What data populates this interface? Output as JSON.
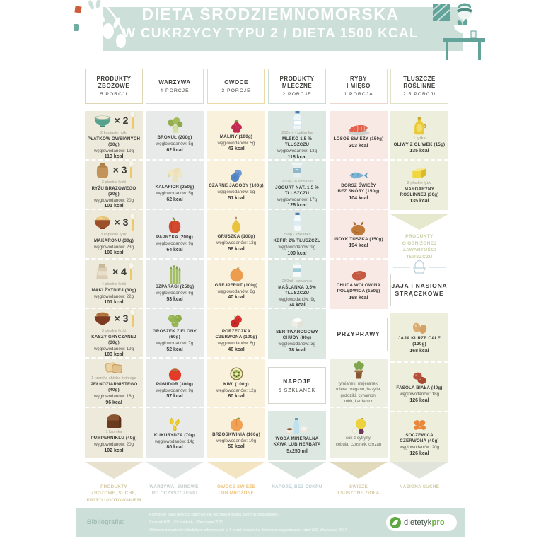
{
  "header": {
    "line1": "DIETA ŚRÓDZIEMNOMORSKA",
    "line2": "W CUKRZYCY TYPU 2 / DIETA 1500 KCAL",
    "band_color": "#cddfd9"
  },
  "columns": [
    {
      "id": "zbozowe",
      "title": "PRODUKTY\nZBOŻOWE",
      "portions": "5 PORCJI",
      "colors": {
        "card": "#edeadb",
        "border": "#ded5b5",
        "arrow": "#e7e1cd",
        "fchev": "#e7e1cd",
        "foot": "#d3c9a2"
      },
      "footnote": "PRODUKTY\nZBOŻOWE, SUCHE,\nPRZED UGOTOWANIEM",
      "items": [
        {
          "icon": "bowl_oats",
          "mult": "× 2",
          "label": "2 kopiaste łyżki",
          "name": "PŁATKÓW OWSIANYCH (30g)",
          "carbs": "węglowodanów: 19g",
          "kcal": "113 kcal"
        },
        {
          "icon": "sack",
          "mult": "× 3",
          "label": "3 płaskie łyżki",
          "name": "RYŻU BRĄZOWEGO (30g)",
          "carbs": "węglowodanów: 20g",
          "kcal": "101 kcal"
        },
        {
          "icon": "bowl_pasta",
          "mult": "× 3",
          "label": "3 kopiaste łyżki",
          "name": "MAKARONU (30g)",
          "carbs": "węglowodanów: 23g",
          "kcal": "100 kcal"
        },
        {
          "icon": "flour_bag",
          "mult": "× 4",
          "label": "4 płaskie łyżki",
          "name": "MĄKI ŻYTNIEJ (30g)",
          "carbs": "węglowodanów: 22g",
          "kcal": "101 kcal"
        },
        {
          "icon": "bowl_groats",
          "mult": "× 3",
          "label": "3 płaskie łyżki",
          "name": "KASZY GRYCZANEJ (30g)",
          "carbs": "węglowodanów: 19g",
          "kcal": "103 kcal"
        },
        {
          "icon": "bread_slices",
          "label": "1 kromka chleba żytniego",
          "name": "PEŁNOZIARNISTEGO (40g)",
          "carbs": "węglowodanów: 18g",
          "kcal": "96 kcal"
        },
        {
          "icon": "bread_loaf",
          "label": "1 kromka",
          "name": "PUMPERNIKLU (40g)",
          "carbs": "węglowodanów: 20g",
          "kcal": "102 kcal"
        }
      ]
    },
    {
      "id": "warzywa",
      "title": "WARZYWA",
      "portions": "4 PORCJE",
      "colors": {
        "card": "#e8eae9",
        "border": "#d6dbd9",
        "arrow": "#e1e5e4",
        "fchev": "#e1e5e4",
        "foot": "#c2cac7"
      },
      "footnote": "WARZYWA, SUROWE,\nPO OCZYSZCZENIU",
      "items": [
        {
          "icon": "broccoli",
          "name": "BROKUŁ (200g)",
          "carbs": "węglowodanów: 5g",
          "kcal": "62 kcal"
        },
        {
          "icon": "cauliflower",
          "name": "KALAFIOR (250g)",
          "carbs": "węglowodanów: 5g",
          "kcal": "62 kcal"
        },
        {
          "icon": "pepper",
          "name": "PAPRYKA (200g)",
          "carbs": "węglowodanów: 9g",
          "kcal": "64 kcal"
        },
        {
          "icon": "asparagus",
          "name": "SZPARAGI (250g)",
          "carbs": "węglowodanów: 6g",
          "kcal": "53 kcal"
        },
        {
          "icon": "peas",
          "name": "GROSZEK ZIELONY (60g)",
          "carbs": "węglowodanów: 7g",
          "kcal": "52 kcal"
        },
        {
          "icon": "tomato",
          "name": "POMIDOR (300g)",
          "carbs": "węglowodanów: 9g",
          "kcal": "57 kcal"
        },
        {
          "icon": "corn",
          "name": "KUKURYDZA (70g)",
          "carbs": "węglowodanów: 14g",
          "kcal": "80 kcal"
        }
      ]
    },
    {
      "id": "owoce",
      "title": "OWOCE",
      "portions": "3 PORCJE",
      "colors": {
        "card": "#faf1dd",
        "border": "#eedaa4",
        "arrow": "#f4e5c2",
        "fchev": "#f4e5c2",
        "foot": "#eec27a"
      },
      "footnote": "OWOCE ŚWIEŻE\nLUB MROŻONE",
      "items": [
        {
          "icon": "raspberry",
          "name": "MALINY (100g)",
          "carbs": "węglowodanów: 5g",
          "kcal": "43 kcal"
        },
        {
          "icon": "blueberries",
          "name": "CZARNE JAGODY (100g)",
          "carbs": "węglowodanów: 9g",
          "kcal": "51 kcal"
        },
        {
          "icon": "pear",
          "name": "GRUSZKA (100g)",
          "carbs": "węglowodanów: 12g",
          "kcal": "58 kcal"
        },
        {
          "icon": "grapefruit",
          "name": "GREJPFRUT (100g)",
          "carbs": "węglowodanów: 8g",
          "kcal": "40 kcal"
        },
        {
          "icon": "currants",
          "name": "PORZECZKA CZERWONA (100g)",
          "carbs": "węglowodanów: 6g",
          "kcal": "46 kcal"
        },
        {
          "icon": "kiwi",
          "name": "KIWI (100g)",
          "carbs": "węglowodanów: 12g",
          "kcal": "60 kcal"
        },
        {
          "icon": "peach",
          "name": "BRZOSKWINIA (100g)",
          "carbs": "węglowodanów: 10g",
          "kcal": "50 kcal"
        }
      ]
    },
    {
      "id": "mleczne",
      "title": "PRODUKTY\nMLECZNE",
      "portions": "2 PORCJE",
      "colors": {
        "card": "#dde8e3",
        "border": "#cfdcd6",
        "arrow": "#d8e3de",
        "fchev": "#d8e3de",
        "foot": "#bccdd2"
      },
      "footnote": "NAPOJE, BEZ CUKRU",
      "items": [
        {
          "icon": "milk_bottle",
          "label": "250 ml - szklanka",
          "name": "MLEKO 1,5 % TŁUSZCZU",
          "carbs": "węglowodanów: 13g",
          "kcal": "118 kcal"
        },
        {
          "icon": "yogurt_cup",
          "label": "200g - ¾ szklanki",
          "name": "JOGURT NAT. 1,5 % TŁUSZCZU",
          "carbs": "węglowodanów: 17g",
          "kcal": "126 kcal"
        },
        {
          "icon": "kefir_bottle",
          "label": "250g - szklanka",
          "name": "KEFIR 2% TŁUSZCZU",
          "carbs": "węglowodanów: 9g",
          "kcal": "100 kcal"
        },
        {
          "icon": "carton",
          "label": "250ml - szklanka",
          "name": "MAŚLANKA 0,5% TŁUSZCZU",
          "carbs": "węglowodanów: 9g",
          "kcal": "74 kcal"
        },
        {
          "icon": "cheese",
          "name": "SER TWAROGOWY CHUDY (80g)",
          "carbs": "węglowodanów: 3g",
          "kcal": "78 kcal"
        },
        {
          "kind": "box",
          "title": "NAPOJE",
          "sub": "5 SZKLANEK"
        },
        {
          "icon": "water_set",
          "name": "WODA MINERALNA\nKAWA LUB HERBATA",
          "amount": "5x250 ml"
        }
      ]
    },
    {
      "id": "ryby-mieso",
      "title": "RYBY\nI MIĘSO",
      "portions": "1 PORCJA",
      "colors": {
        "card": "#f8e9e5",
        "border": "#eed6ce",
        "arrow": "#e1dabc",
        "fchev": "#e1dabc",
        "foot": "#d5c9a2",
        "tail_card": "#ecefe2"
      },
      "footnote": "ŚWIEŻE\nI SUSZONE ZIOŁA",
      "items": [
        {
          "icon": "salmon",
          "name": "ŁOSOŚ ŚWIEŻY (150g)",
          "kcal": "303 kcal"
        },
        {
          "icon": "fish",
          "name": "DORSZ ŚWIEŻY\nBEZ SKÓRY (150g)",
          "kcal": "104 kcal"
        },
        {
          "icon": "turkey",
          "name": "INDYK TUSZKA (150g)",
          "kcal": "194 kcal"
        },
        {
          "icon": "beef",
          "name": "CHUDA WOŁOWINA\nPOLĘDWICA (150g)",
          "kcal": "168 kcal"
        },
        {
          "kind": "box",
          "title": "PRZYPRAWY"
        },
        {
          "icon": "herb_pot",
          "text": "tymianek, majeranek,\nmięta, oregano, bazylia,\ngoździki, cynamon,\nimbir, kardamon"
        },
        {
          "icon": "lemon_onion",
          "text": "sok z cytryny,\ncebula, czosnek, chrzan"
        }
      ]
    },
    {
      "id": "tluszcze",
      "title": "TŁUSZCZE\nROŚLINNE",
      "portions": "2,5 PORCJI",
      "colors": {
        "card": "#edefdc",
        "border": "#dfe3c6",
        "arrow": "#e7e9cf",
        "fchev": "#e0e4da",
        "foot": "#cfcaa4"
      },
      "footnote": "NASIONA SUCHE",
      "items": [
        {
          "icon": "oil_jug",
          "label": "1 łyżka",
          "name": "OLIWY Z OLIWEK (15g)",
          "kcal": "135 kcal"
        },
        {
          "icon": "margarine",
          "label": "2 płaskie łyżki",
          "name": "MARGARYNY ROŚLINNEJ (30g)",
          "kcal": "135 kcal"
        },
        {
          "kind": "arrow_note",
          "text": "PRODUKTY\nO OBNIŻONEJ\nZAWARTOŚCI TŁUSZCZU"
        },
        {
          "kind": "egg_box",
          "title": "JAJA I NASIONA\nSTRĄCZKOWE"
        },
        {
          "icon": "eggs",
          "name": "JAJA KURZE CAŁE (120g)",
          "kcal": "168 kcal"
        },
        {
          "icon": "beans",
          "name": "FASOLA BIAŁA (40g)",
          "carbs": "węglowodanów: 18g",
          "kcal": "126 kcal"
        },
        {
          "icon": "lentils",
          "name": "SOCZEWICA CZERWONA (40g)",
          "carbs": "węglowodanów: 20g",
          "kcal": "126 kcal"
        }
      ]
    }
  ],
  "bibliography": {
    "label": "Bibliografia:",
    "lines": [
      "Powyższe dane dotyczą cukrzycy nie leczonej insuliną, bez mikroalbuminurii",
      "Szostak W.B., Cichocka A., Warszawa 2012",
      "Obliczeń zawartości składników odżywczych w 1 porcji produktów dokonano na podstawie tabel IŻŻ, Warszawa 2017"
    ]
  },
  "logo": {
    "name_regular": "dietetyk",
    "name_bold": "pro",
    "color": "#6db33f"
  }
}
